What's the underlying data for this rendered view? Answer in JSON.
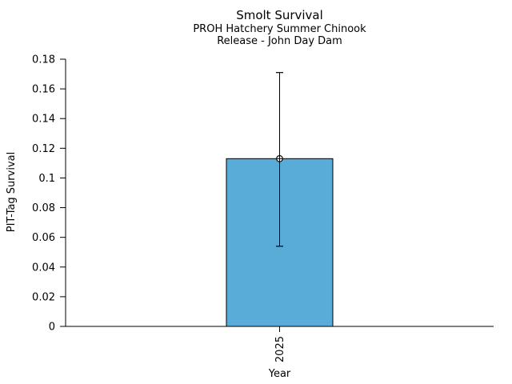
{
  "chart_data": {
    "type": "bar",
    "title": "Smolt Survival",
    "subtitle": [
      "PROH Hatchery Summer Chinook",
      "Release - John Day Dam"
    ],
    "xlabel": "Year",
    "ylabel": "PIT-Tag Survival",
    "categories": [
      "2025"
    ],
    "values": [
      0.113
    ],
    "error_bars": {
      "low": [
        0.054
      ],
      "high": [
        0.171
      ]
    },
    "ylim": [
      0,
      0.18
    ],
    "ytick_labels": [
      "0",
      "0.02",
      "0.04",
      "0.06",
      "0.08",
      "0.1",
      "0.12",
      "0.14",
      "0.16",
      "0.18"
    ],
    "grid": false,
    "legend": "none",
    "marker": "open-circle",
    "colors": {
      "bar_fill": "#5AACD8",
      "bar_edge": "#000000",
      "error_bar": "#000000",
      "marker_face": "#FFFFFF",
      "marker_edge": "#000000",
      "axis": "#000000",
      "text": "#000000",
      "background": "#FFFFFF"
    }
  }
}
